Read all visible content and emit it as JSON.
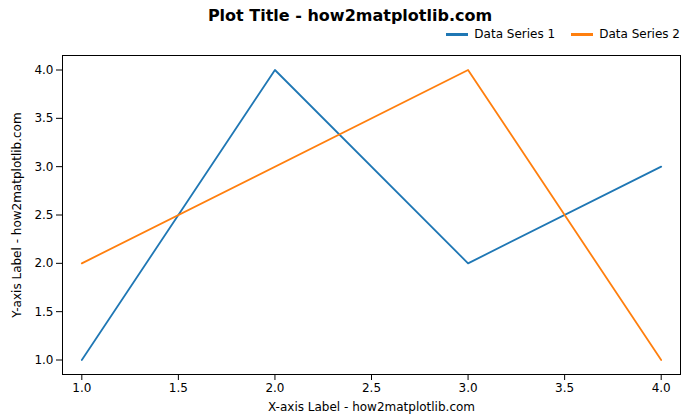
{
  "chart_data": {
    "type": "line",
    "title": "Plot Title - how2matplotlib.com",
    "xlabel": "X-axis Label - how2matplotlib.com",
    "ylabel": "Y-axis Label - how2matplotlib.com",
    "series": [
      {
        "name": "Data Series 1",
        "color": "#1f77b4",
        "x": [
          1,
          2,
          3,
          4
        ],
        "values": [
          1,
          4,
          2,
          3
        ]
      },
      {
        "name": "Data Series 2",
        "color": "#ff7f0e",
        "x": [
          1,
          3,
          4
        ],
        "values": [
          2,
          4,
          1
        ]
      }
    ],
    "xlim": [
      0.9,
      4.1
    ],
    "ylim": [
      0.85,
      4.15
    ],
    "xticks": [
      {
        "value": 1,
        "label": "1.0"
      },
      {
        "value": 1.5,
        "label": "1.5"
      },
      {
        "value": 2,
        "label": "2.0"
      },
      {
        "value": 2.5,
        "label": "2.5"
      },
      {
        "value": 3,
        "label": "3.0"
      },
      {
        "value": 3.5,
        "label": "3.5"
      },
      {
        "value": 4,
        "label": "4.0"
      }
    ],
    "yticks": [
      {
        "value": 1,
        "label": "1.0"
      },
      {
        "value": 1.5,
        "label": "1.5"
      },
      {
        "value": 2,
        "label": "2.0"
      },
      {
        "value": 2.5,
        "label": "2.5"
      },
      {
        "value": 3,
        "label": "3.0"
      },
      {
        "value": 3.5,
        "label": "3.5"
      },
      {
        "value": 4,
        "label": "4.0"
      }
    ],
    "grid": false,
    "legend": "upper right"
  }
}
